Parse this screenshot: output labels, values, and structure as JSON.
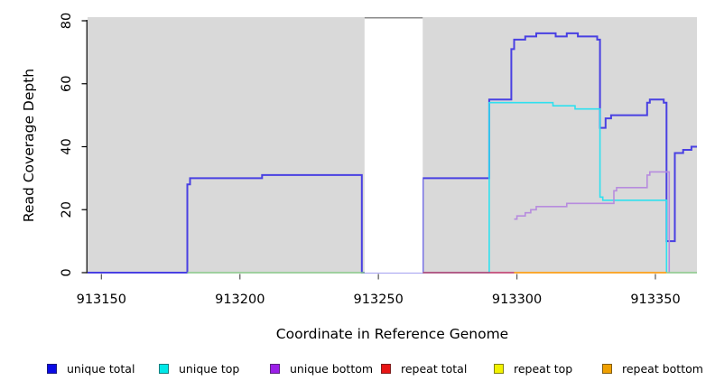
{
  "chart_data": {
    "type": "line",
    "title": "",
    "xlabel": "Coordinate in Reference Genome",
    "ylabel": "Read Coverage Depth",
    "xlim": [
      913145,
      913365
    ],
    "ylim": [
      0,
      80
    ],
    "x_ticks": [
      913150,
      913200,
      913250,
      913300,
      913350
    ],
    "y_ticks": [
      0,
      20,
      40,
      60,
      80
    ],
    "grid": "off",
    "legend_position": "bottom",
    "panel_bg": "#D9D9D9",
    "gap_region": {
      "from": 913245,
      "to": 913266,
      "fill": "#FFFFFF",
      "top_border": "#8A8A8A"
    },
    "series": [
      {
        "name": "unique total",
        "color": "#4940E2",
        "width": 2,
        "steps": [
          [
            913145,
            0
          ],
          [
            913181,
            28
          ],
          [
            913182,
            30
          ],
          [
            913208,
            31
          ],
          [
            913244,
            0
          ],
          [
            913266,
            30
          ],
          [
            913290,
            55
          ],
          [
            913298,
            71
          ],
          [
            913299,
            74
          ],
          [
            913303,
            75
          ],
          [
            913307,
            76
          ],
          [
            913314,
            75
          ],
          [
            913318,
            76
          ],
          [
            913322,
            75
          ],
          [
            913329,
            74
          ],
          [
            913330,
            46
          ],
          [
            913332,
            49
          ],
          [
            913334,
            50
          ],
          [
            913347,
            54
          ],
          [
            913348,
            55
          ],
          [
            913353,
            54
          ],
          [
            913354,
            10
          ],
          [
            913357,
            38
          ],
          [
            913360,
            39
          ],
          [
            913363,
            40
          ]
        ],
        "end": 913365
      },
      {
        "name": "unique top",
        "color": "#2FE0EF",
        "width": 1.6,
        "steps": [
          [
            913266,
            0
          ],
          [
            913290,
            54
          ],
          [
            913313,
            53
          ],
          [
            913321,
            52
          ],
          [
            913330,
            24
          ],
          [
            913331,
            23
          ],
          [
            913354,
            0
          ]
        ],
        "end": 913354
      },
      {
        "name": "unique bottom",
        "color": "#B78CDE",
        "width": 1.6,
        "steps": [
          [
            913299,
            17
          ],
          [
            913300,
            18
          ],
          [
            913303,
            19
          ],
          [
            913305,
            20
          ],
          [
            913307,
            21
          ],
          [
            913318,
            22
          ],
          [
            913335,
            26
          ],
          [
            913336,
            27
          ],
          [
            913347,
            31
          ],
          [
            913348,
            32
          ],
          [
            913355,
            0
          ]
        ],
        "end": 913355
      },
      {
        "name": "repeat total",
        "color": "#C2356B",
        "width": 1.6,
        "steps": [
          [
            913266,
            0
          ]
        ],
        "end": 913299
      },
      {
        "name": "repeat top",
        "color": "#F0E800",
        "width": 1.6,
        "steps": [],
        "end": null
      },
      {
        "name": "repeat bottom",
        "color": "#FFA018",
        "width": 1.8,
        "steps": [
          [
            913299,
            0
          ]
        ],
        "end": 913354
      },
      {
        "name": "unlabeled green baseline a",
        "color": "#8CCE8C",
        "width": 1.6,
        "steps": [
          [
            913181,
            0
          ]
        ],
        "end": 913245
      },
      {
        "name": "unlabeled green baseline b",
        "color": "#8CCE8C",
        "width": 1.6,
        "steps": [
          [
            913354,
            0
          ]
        ],
        "end": 913365
      }
    ],
    "legend": [
      {
        "label": "unique total",
        "color": "#0B0BE6"
      },
      {
        "label": "unique top",
        "color": "#00E8E8"
      },
      {
        "label": "unique bottom",
        "color": "#9B1FE8"
      },
      {
        "label": "repeat total",
        "color": "#E81515"
      },
      {
        "label": "repeat top",
        "color": "#F2F200"
      },
      {
        "label": "repeat bottom",
        "color": "#F0A000"
      }
    ]
  }
}
